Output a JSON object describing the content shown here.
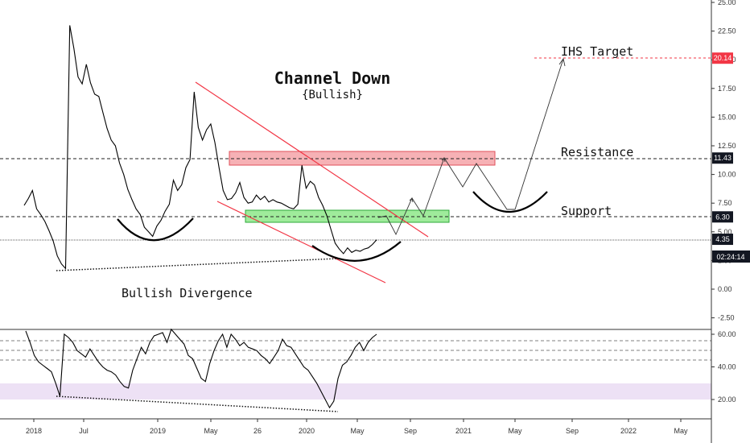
{
  "chart_data": [
    {
      "type": "line",
      "panel": "price",
      "title": "Channel Down",
      "subtitle": "{Bullish}",
      "xlabel": "",
      "ylabel": "",
      "x_ticks": [
        "2018",
        "Jul",
        "2019",
        "May",
        "26",
        "2020",
        "May",
        "Sep",
        "2021",
        "May",
        "Sep",
        "2022",
        "May"
      ],
      "y_ticks": [
        "25.00",
        "22.50",
        "20.00",
        "17.50",
        "15.00",
        "12.50",
        "10.00",
        "7.50",
        "5.00",
        "2.50",
        "0.00",
        "-2.50"
      ],
      "ylim": [
        -3.5,
        25.3
      ],
      "series": [
        {
          "values": [
            7.3,
            7.9,
            8.6,
            7.0,
            6.5,
            5.9,
            5.1,
            4.2,
            2.9,
            2.2,
            1.8,
            23.0,
            21.0,
            18.5,
            17.9,
            19.6,
            18.0,
            17.0,
            16.8,
            15.4,
            14.0,
            13.0,
            12.5,
            11.0,
            10.0,
            8.7,
            7.8,
            7.0,
            6.5,
            5.4,
            5.0,
            4.6,
            5.5,
            6.0,
            6.8,
            7.4,
            9.5,
            8.6,
            9.1,
            10.6,
            11.3,
            17.2,
            14.1,
            13.0,
            13.9,
            14.4,
            12.8,
            10.6,
            8.6,
            7.8,
            7.9,
            8.4,
            9.3,
            8.0,
            7.5,
            7.6,
            8.2,
            7.8,
            8.1,
            7.6,
            7.8,
            7.6,
            7.5,
            7.3,
            7.1,
            7.0,
            7.4,
            10.8,
            8.8,
            9.4,
            9.1,
            8.0,
            7.3,
            6.4,
            5.2,
            4.0,
            3.5,
            3.1,
            3.6,
            3.2,
            3.4,
            3.3,
            3.5,
            3.6,
            3.9,
            4.3
          ]
        }
      ],
      "levels": [
        {
          "label": "11.43",
          "value": 11.43
        },
        {
          "label": "6.30",
          "value": 6.3
        },
        {
          "label": "4.35",
          "value": 4.35
        },
        {
          "label": "20.14",
          "value": 20.14
        }
      ],
      "countdown": "02:24:14",
      "annotations": {
        "target": "IHS Target",
        "resistance": "Resistance",
        "support": "Support",
        "divergence": "Bullish Divergence"
      }
    },
    {
      "type": "line",
      "panel": "oscillator",
      "y_ticks": [
        "60.00",
        "40.00",
        "20.00"
      ],
      "ylim": [
        10,
        63
      ],
      "series": [
        {
          "values": [
            62,
            55,
            47,
            43,
            41,
            39,
            37,
            30,
            22,
            60,
            58,
            55,
            50,
            48,
            46,
            51,
            47,
            43,
            40,
            38,
            37,
            35,
            31,
            28,
            27,
            38,
            45,
            52,
            48,
            55,
            59,
            60,
            61,
            55,
            63,
            60,
            57,
            54,
            47,
            45,
            39,
            33,
            31,
            42,
            50,
            56,
            60,
            52,
            60,
            57,
            53,
            55,
            52,
            51,
            50,
            47,
            45,
            42,
            46,
            50,
            57,
            53,
            52,
            48,
            44,
            40,
            38,
            34,
            30,
            25,
            20,
            15,
            19,
            33,
            41,
            43,
            47,
            52,
            55,
            50,
            55,
            58,
            60
          ]
        }
      ]
    }
  ],
  "colors": {
    "price_line": "#000000",
    "channel": "#f23645",
    "resistance_zone": "#f5a3a8",
    "support_zone": "#8ee88a",
    "target_badge": "#f23645",
    "level_badge": "#131722",
    "rsi_band": "#ede1f5"
  }
}
